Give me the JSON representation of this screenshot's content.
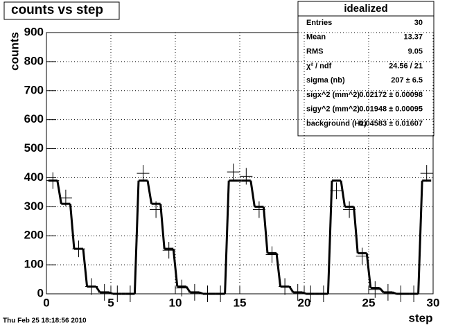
{
  "chart_data": {
    "type": "step-fit",
    "title": "counts vs step",
    "x_label": "step",
    "y_label": "counts",
    "timestamp": "Thu Feb 25 18:18:56 2010",
    "xlim": [
      0,
      30
    ],
    "xticks": [
      0,
      5,
      10,
      15,
      20,
      25,
      30
    ],
    "ylim": [
      0,
      900
    ],
    "yticks": [
      0,
      100,
      200,
      300,
      400,
      500,
      600,
      700,
      800,
      900
    ],
    "grid": true,
    "color": "#000000",
    "x": [
      0.5,
      1.5,
      2.5,
      3.5,
      4.5,
      5.5,
      6.5,
      7.5,
      8.5,
      9.5,
      10.5,
      11.5,
      12.5,
      13.5,
      14.5,
      15.5,
      16.5,
      17.5,
      18.5,
      19.5,
      20.5,
      21.5,
      22.5,
      23.5,
      24.5,
      25.5,
      26.5,
      27.5,
      28.5,
      29.5
    ],
    "values": [
      390,
      330,
      155,
      25,
      5,
      0,
      0,
      415,
      290,
      150,
      20,
      5,
      0,
      0,
      420,
      405,
      290,
      135,
      25,
      5,
      0,
      0,
      355,
      290,
      130,
      15,
      5,
      0,
      0,
      415
    ],
    "fit_values": [
      390,
      310,
      155,
      25,
      5,
      0,
      0,
      390,
      310,
      155,
      25,
      5,
      0,
      0,
      390,
      390,
      300,
      140,
      25,
      5,
      0,
      0,
      390,
      300,
      140,
      20,
      5,
      0,
      0,
      390
    ],
    "stats": {
      "title": "idealized",
      "rows": [
        [
          "Entries",
          "30"
        ],
        [
          "Mean",
          "13.37"
        ],
        [
          "RMS",
          "9.05"
        ],
        [
          "χ² / ndf",
          "24.56 / 21"
        ],
        [
          "sigma (nb)",
          "207 ± 6.5"
        ],
        [
          "sigx^2 (mm^2)",
          "0.02172 ± 0.00098"
        ],
        [
          "sigy^2 (mm^2)",
          "0.01948 ± 0.00095"
        ],
        [
          "background (Hz)",
          "0.04583 ± 0.01607"
        ]
      ]
    }
  }
}
